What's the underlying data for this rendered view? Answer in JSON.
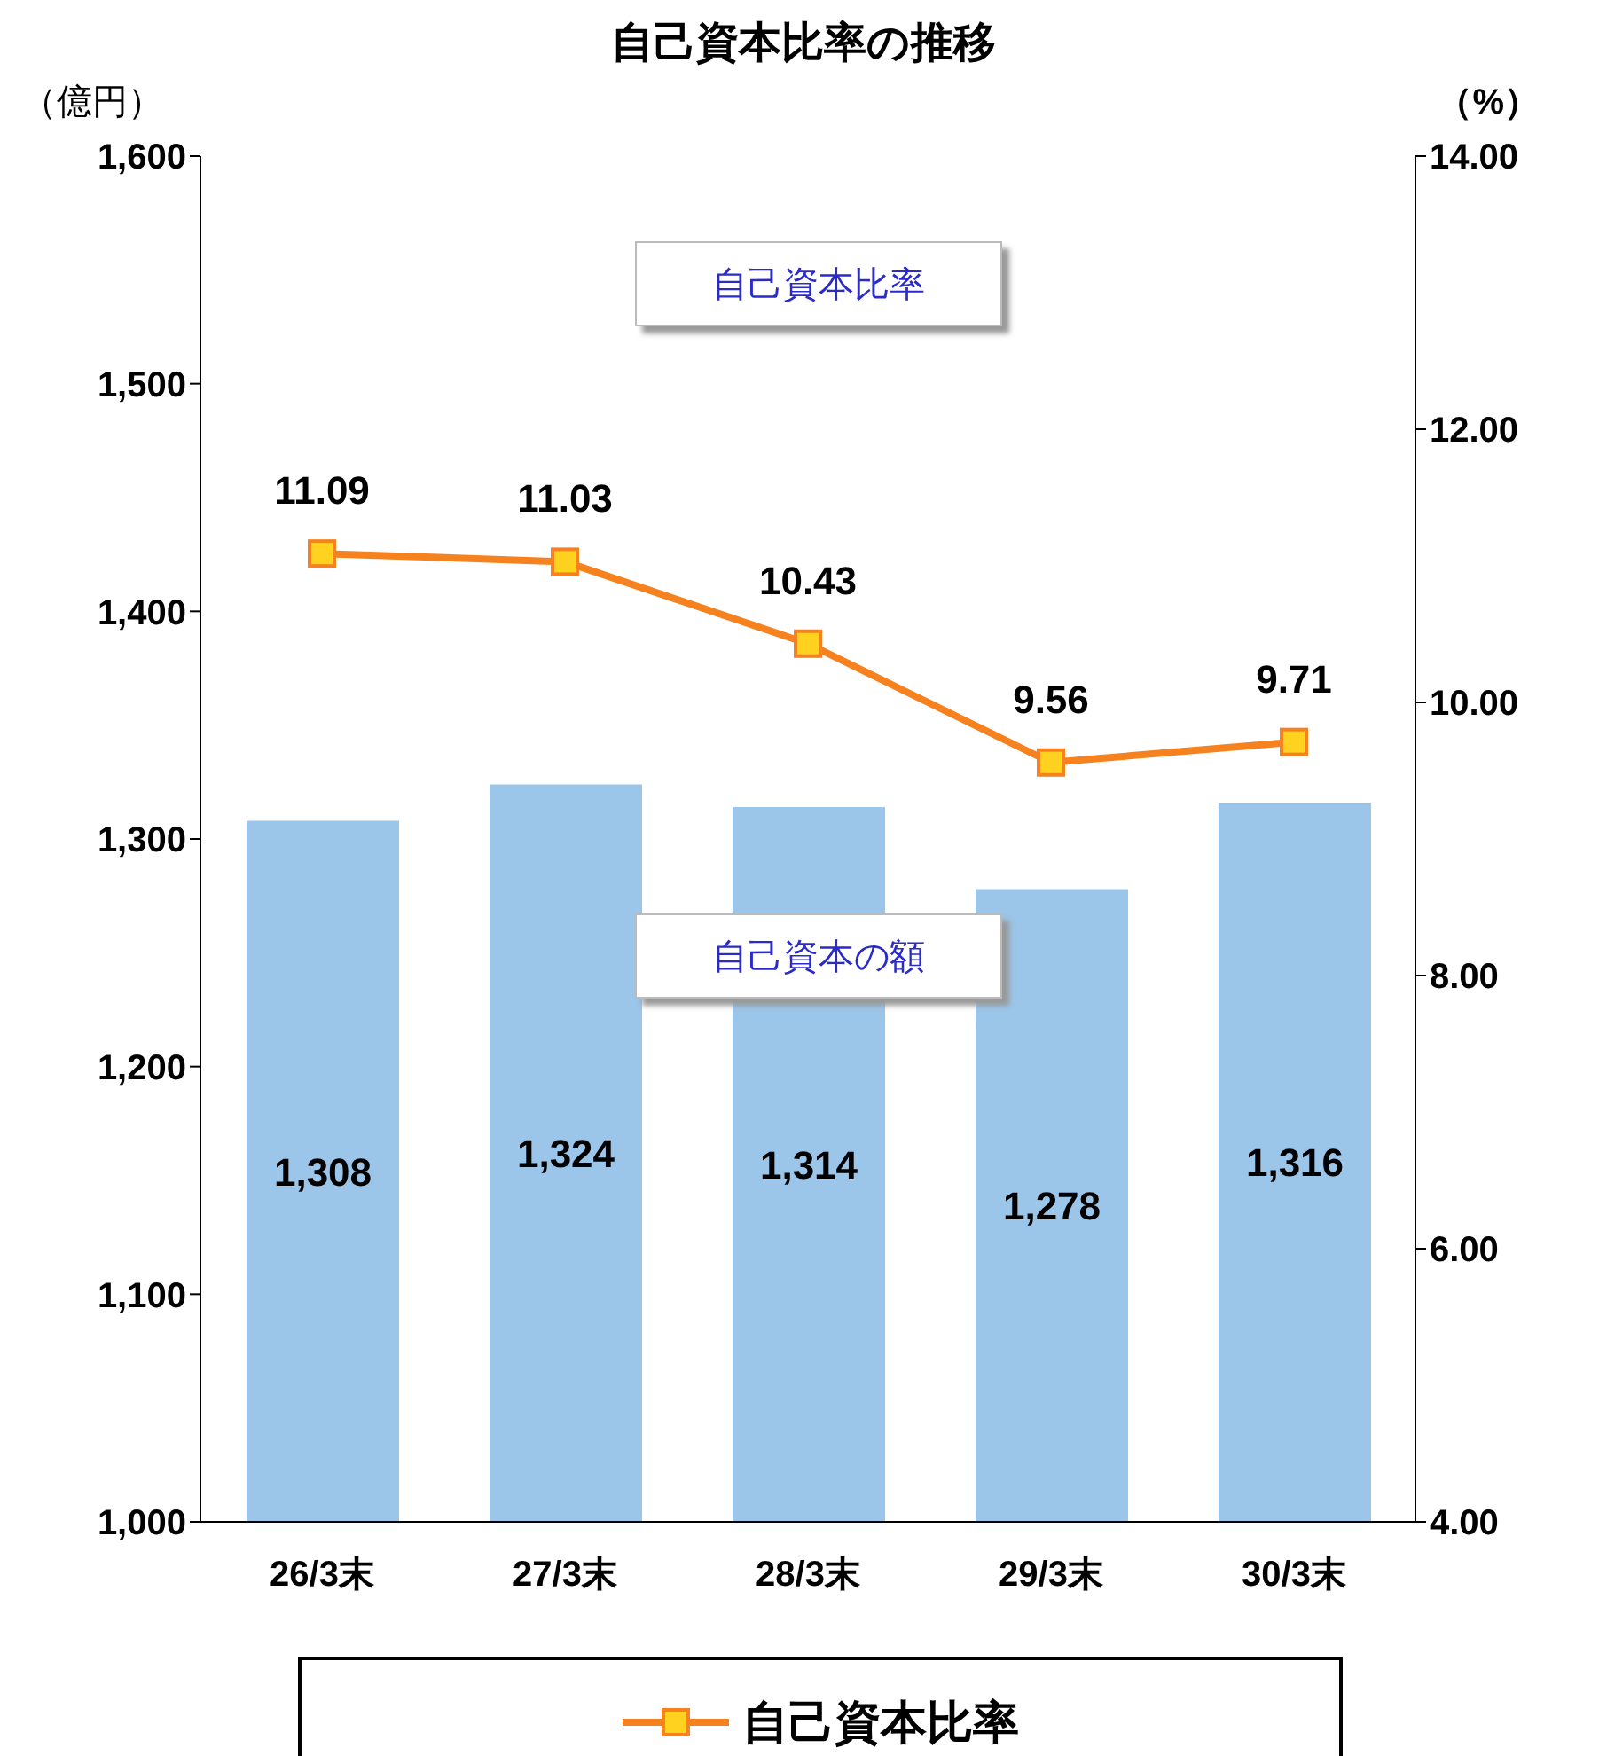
{
  "chart_data": {
    "type": "bar",
    "title": "自己資本比率の推移",
    "ylabel": "（億円）",
    "y2label": "（%）",
    "categories": [
      "26/3末",
      "27/3末",
      "28/3末",
      "29/3末",
      "30/3末"
    ],
    "series": [
      {
        "name": "自己資本の額",
        "color": "#9cc5ea",
        "values": [
          1308,
          1324,
          1314,
          1278,
          1316
        ],
        "value_labels": [
          "1,308",
          "1,324",
          "1,314",
          "1,278",
          "1,316"
        ]
      },
      {
        "name": "自己資本比率",
        "type": "line",
        "axis": "y2",
        "color": "#f5821f",
        "values": [
          11.09,
          11.03,
          10.43,
          9.56,
          9.71
        ],
        "value_labels": [
          "11.09",
          "11.03",
          "10.43",
          "9.56",
          "9.71"
        ]
      }
    ],
    "ylim": [
      1000,
      1600
    ],
    "yticks": [
      {
        "value": 1000,
        "label": "1,000"
      },
      {
        "value": 1100,
        "label": "1,100"
      },
      {
        "value": 1200,
        "label": "1,200"
      },
      {
        "value": 1300,
        "label": "1,300"
      },
      {
        "value": 1400,
        "label": "1,400"
      },
      {
        "value": 1500,
        "label": "1,500"
      },
      {
        "value": 1600,
        "label": "1,600"
      }
    ],
    "y2lim": [
      4,
      14
    ],
    "y2ticks": [
      {
        "value": 4,
        "label": "4.00"
      },
      {
        "value": 6,
        "label": "6.00"
      },
      {
        "value": 8,
        "label": "8.00"
      },
      {
        "value": 10,
        "label": "10.00"
      },
      {
        "value": 12,
        "label": "12.00"
      },
      {
        "value": 14,
        "label": "14.00"
      }
    ],
    "marker": "square",
    "line_style": "solid",
    "legend": "bottom"
  }
}
